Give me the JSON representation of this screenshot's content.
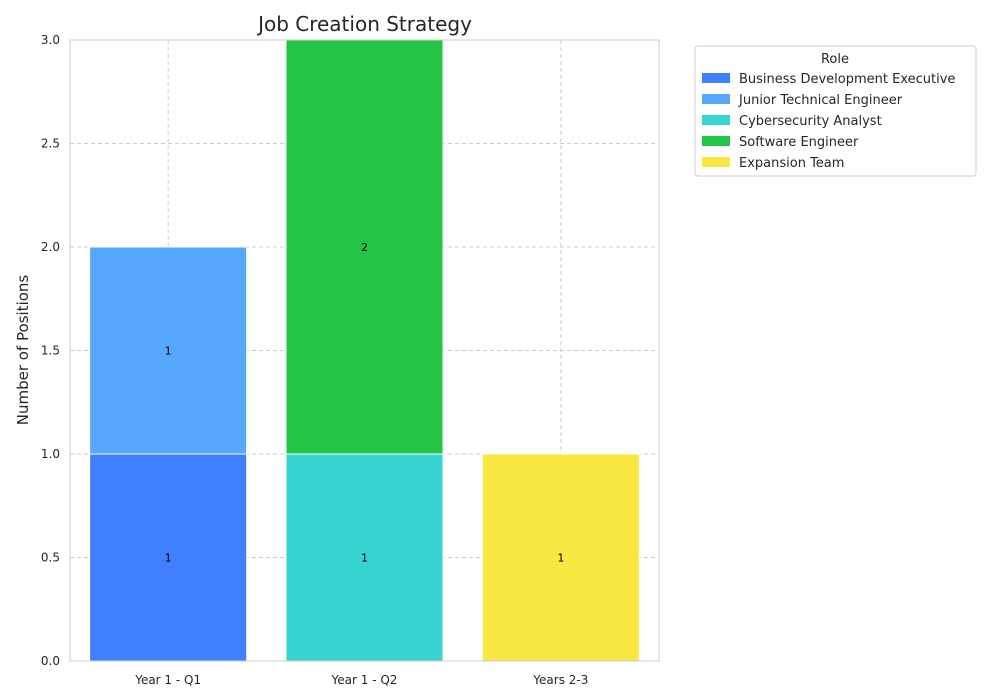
{
  "chart_data": {
    "type": "bar",
    "stacked": true,
    "title": "Job Creation Strategy",
    "xlabel": "",
    "ylabel": "Number of Positions",
    "ylim": [
      0,
      3
    ],
    "yticks": [
      "0.0",
      "0.5",
      "1.0",
      "1.5",
      "2.0",
      "2.5",
      "3.0"
    ],
    "grid": true,
    "categories": [
      "Year 1 - Q1",
      "Year 1 - Q2",
      "Years 2-3"
    ],
    "legend": {
      "title": "Role",
      "placement": "outside-top-right"
    },
    "series": [
      {
        "name": "Business Development Executive",
        "color": "#4080ff",
        "values": [
          1,
          0,
          0
        ]
      },
      {
        "name": "Junior Technical Engineer",
        "color": "#56a8fc",
        "values": [
          1,
          0,
          0
        ]
      },
      {
        "name": "Cybersecurity Analyst",
        "color": "#38d4d2",
        "values": [
          0,
          1,
          0
        ]
      },
      {
        "name": "Software Engineer",
        "color": "#24c446",
        "values": [
          0,
          2,
          0
        ]
      },
      {
        "name": "Expansion Team",
        "color": "#f9e842",
        "values": [
          0,
          0,
          1
        ]
      }
    ]
  }
}
